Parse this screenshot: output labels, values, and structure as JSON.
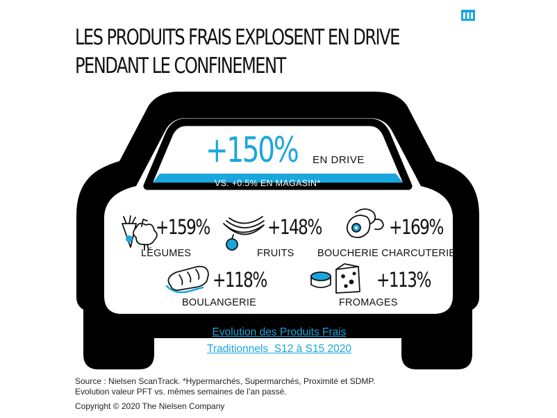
{
  "title": {
    "line1": "LES PRODUITS FRAIS EXPLOSENT EN DRIVE",
    "line2": "PENDANT LE CONFINEMENT"
  },
  "headline": {
    "value": "+150%",
    "label": "EN DRIVE",
    "comparison": "VS. +0.5% EN MAGASIN*"
  },
  "categories": [
    {
      "value": "+159%",
      "label": "LÉGUMES",
      "icon": "vegetables-icon"
    },
    {
      "value": "+148%",
      "label": "FRUITS",
      "icon": "fruits-icon"
    },
    {
      "value": "+169%",
      "label": "BOUCHERIE CHARCUTERIE",
      "icon": "meat-icon"
    },
    {
      "value": "+118%",
      "label": "BOULANGERIE",
      "icon": "bread-icon"
    },
    {
      "value": "+113%",
      "label": "FROMAGES",
      "icon": "cheese-icon"
    }
  ],
  "link": {
    "line1": "Evolution des Produits Frais",
    "line2": "Traditionnels  S12 à S15 2020"
  },
  "source": {
    "line1": "Source : Nielsen ScanTrack. *Hypermarchés, Supermarchés, Proximité et SDMP.",
    "line2": "Evolution valeur PFT vs. mêmes semaines de l’an passé."
  },
  "copyright": "Copyright © 2020 The Nielsen Company",
  "colors": {
    "accent": "#1aa6dc",
    "ink": "#111111",
    "background": "#ffffff"
  }
}
